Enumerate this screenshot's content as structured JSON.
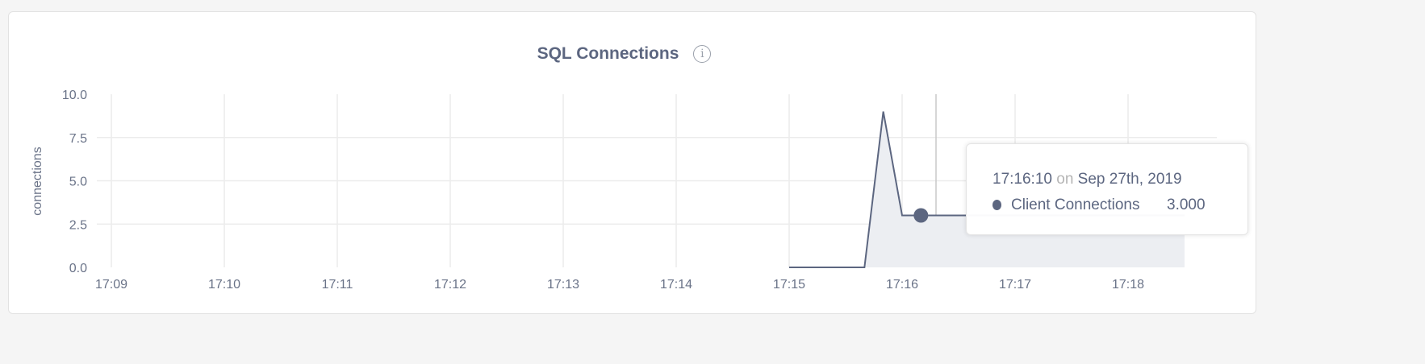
{
  "card": {
    "title": "SQL Connections",
    "info_icon": "info-icon"
  },
  "tooltip": {
    "time": "17:16:10",
    "on": "on",
    "date": "Sep 27th, 2019",
    "series": "Client Connections",
    "value": "3.000",
    "color": "#5c6680"
  },
  "chart_data": {
    "type": "area",
    "title": "SQL Connections",
    "ylabel": "connections",
    "xlabel": "",
    "ylim": [
      0,
      10
    ],
    "yticks": [
      "0.0",
      "2.5",
      "5.0",
      "7.5",
      "10.0"
    ],
    "xticks": [
      "17:09",
      "17:10",
      "17:11",
      "17:12",
      "17:13",
      "17:14",
      "17:15",
      "17:16",
      "17:17",
      "17:18"
    ],
    "grid": true,
    "series": [
      {
        "name": "Client Connections",
        "color": "#5c6680",
        "fill": "#eceef2",
        "x": [
          "17:15:00",
          "17:15:10",
          "17:15:20",
          "17:15:30",
          "17:15:40",
          "17:15:50",
          "17:16:00",
          "17:16:10",
          "17:16:20",
          "17:16:30",
          "17:16:40",
          "17:16:50",
          "17:17:00",
          "17:17:10",
          "17:17:20",
          "17:17:30",
          "17:17:40",
          "17:17:50",
          "17:18:00",
          "17:18:10",
          "17:18:20",
          "17:18:30"
        ],
        "values": [
          0,
          0,
          0,
          0,
          0,
          9,
          3,
          3,
          3,
          3,
          3,
          3,
          3,
          3,
          3,
          3,
          3,
          3,
          3,
          3,
          3,
          3
        ]
      }
    ],
    "highlight": {
      "x": "17:16:10",
      "value": 3
    }
  }
}
